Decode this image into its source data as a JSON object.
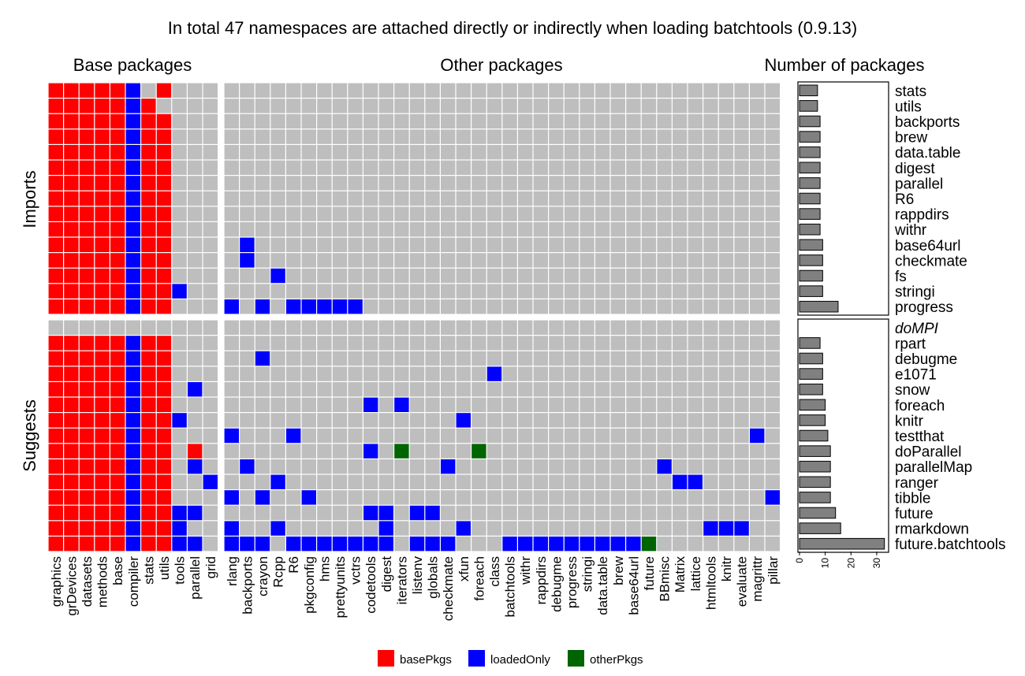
{
  "chart_data": {
    "type": "heatmap",
    "title": "In total 47 namespaces are attached directly or indirectly when loading batchtools (0.9.13)",
    "panel_titles": {
      "base": "Base packages",
      "other": "Other packages",
      "count": "Number of packages"
    },
    "group_labels": [
      "Imports",
      "Suggests"
    ],
    "base_columns": [
      "graphics",
      "grDevices",
      "datasets",
      "methods",
      "base",
      "compiler",
      "stats",
      "utils",
      "tools",
      "parallel",
      "grid"
    ],
    "other_columns": [
      "rlang",
      "backports",
      "crayon",
      "Rcpp",
      "R6",
      "pkgconfig",
      "hms",
      "prettyunits",
      "vctrs",
      "codetools",
      "digest",
      "iterators",
      "listenv",
      "globals",
      "checkmate",
      "xfun",
      "foreach",
      "class",
      "batchtools",
      "withr",
      "rappdirs",
      "debugme",
      "progress",
      "stringi",
      "data.table",
      "brew",
      "base64url",
      "future",
      "BBmisc",
      "Matrix",
      "lattice",
      "htmltools",
      "knitr",
      "evaluate",
      "magrittr",
      "pillar"
    ],
    "legend": [
      {
        "key": "basePkgs",
        "label": "basePkgs",
        "color": "#ff0000"
      },
      {
        "key": "loadedOnly",
        "label": "loadedOnly",
        "color": "#0000ff"
      },
      {
        "key": "otherPkgs",
        "label": "otherPkgs",
        "color": "#006400"
      }
    ],
    "empty_color": "#bebebe",
    "bar_color": "#808080",
    "count_axis": {
      "ticks": [
        0,
        10,
        20,
        30
      ],
      "range": [
        0,
        34
      ]
    },
    "rows": [
      {
        "group": "Imports",
        "name": "stats",
        "count": 7,
        "base": [
          "basePkgs",
          "basePkgs",
          "basePkgs",
          "basePkgs",
          "basePkgs",
          "loadedOnly",
          "",
          "basePkgs",
          "",
          "",
          ""
        ],
        "other": []
      },
      {
        "group": "Imports",
        "name": "utils",
        "count": 7,
        "base": [
          "basePkgs",
          "basePkgs",
          "basePkgs",
          "basePkgs",
          "basePkgs",
          "loadedOnly",
          "basePkgs",
          "",
          "",
          "",
          ""
        ],
        "other": []
      },
      {
        "group": "Imports",
        "name": "backports",
        "count": 8,
        "base": [
          "basePkgs",
          "basePkgs",
          "basePkgs",
          "basePkgs",
          "basePkgs",
          "loadedOnly",
          "basePkgs",
          "basePkgs",
          "",
          "",
          ""
        ],
        "other": []
      },
      {
        "group": "Imports",
        "name": "brew",
        "count": 8,
        "base": [
          "basePkgs",
          "basePkgs",
          "basePkgs",
          "basePkgs",
          "basePkgs",
          "loadedOnly",
          "basePkgs",
          "basePkgs",
          "",
          "",
          ""
        ],
        "other": []
      },
      {
        "group": "Imports",
        "name": "data.table",
        "count": 8,
        "base": [
          "basePkgs",
          "basePkgs",
          "basePkgs",
          "basePkgs",
          "basePkgs",
          "loadedOnly",
          "basePkgs",
          "basePkgs",
          "",
          "",
          ""
        ],
        "other": []
      },
      {
        "group": "Imports",
        "name": "digest",
        "count": 8,
        "base": [
          "basePkgs",
          "basePkgs",
          "basePkgs",
          "basePkgs",
          "basePkgs",
          "loadedOnly",
          "basePkgs",
          "basePkgs",
          "",
          "",
          ""
        ],
        "other": []
      },
      {
        "group": "Imports",
        "name": "parallel",
        "count": 8,
        "base": [
          "basePkgs",
          "basePkgs",
          "basePkgs",
          "basePkgs",
          "basePkgs",
          "loadedOnly",
          "basePkgs",
          "basePkgs",
          "",
          "",
          ""
        ],
        "other": []
      },
      {
        "group": "Imports",
        "name": "R6",
        "count": 8,
        "base": [
          "basePkgs",
          "basePkgs",
          "basePkgs",
          "basePkgs",
          "basePkgs",
          "loadedOnly",
          "basePkgs",
          "basePkgs",
          "",
          "",
          ""
        ],
        "other": []
      },
      {
        "group": "Imports",
        "name": "rappdirs",
        "count": 8,
        "base": [
          "basePkgs",
          "basePkgs",
          "basePkgs",
          "basePkgs",
          "basePkgs",
          "loadedOnly",
          "basePkgs",
          "basePkgs",
          "",
          "",
          ""
        ],
        "other": []
      },
      {
        "group": "Imports",
        "name": "withr",
        "count": 8,
        "base": [
          "basePkgs",
          "basePkgs",
          "basePkgs",
          "basePkgs",
          "basePkgs",
          "loadedOnly",
          "basePkgs",
          "basePkgs",
          "",
          "",
          ""
        ],
        "other": []
      },
      {
        "group": "Imports",
        "name": "base64url",
        "count": 9,
        "base": [
          "basePkgs",
          "basePkgs",
          "basePkgs",
          "basePkgs",
          "basePkgs",
          "loadedOnly",
          "basePkgs",
          "basePkgs",
          "",
          "",
          ""
        ],
        "other": [
          "backports"
        ]
      },
      {
        "group": "Imports",
        "name": "checkmate",
        "count": 9,
        "base": [
          "basePkgs",
          "basePkgs",
          "basePkgs",
          "basePkgs",
          "basePkgs",
          "loadedOnly",
          "basePkgs",
          "basePkgs",
          "",
          "",
          ""
        ],
        "other": [
          "backports"
        ]
      },
      {
        "group": "Imports",
        "name": "fs",
        "count": 9,
        "base": [
          "basePkgs",
          "basePkgs",
          "basePkgs",
          "basePkgs",
          "basePkgs",
          "loadedOnly",
          "basePkgs",
          "basePkgs",
          "",
          "",
          ""
        ],
        "other": [
          "Rcpp"
        ]
      },
      {
        "group": "Imports",
        "name": "stringi",
        "count": 9,
        "base": [
          "basePkgs",
          "basePkgs",
          "basePkgs",
          "basePkgs",
          "basePkgs",
          "loadedOnly",
          "basePkgs",
          "basePkgs",
          "loadedOnly",
          "",
          ""
        ],
        "other": []
      },
      {
        "group": "Imports",
        "name": "progress",
        "count": 15,
        "base": [
          "basePkgs",
          "basePkgs",
          "basePkgs",
          "basePkgs",
          "basePkgs",
          "loadedOnly",
          "basePkgs",
          "basePkgs",
          "",
          "",
          ""
        ],
        "other": [
          "rlang",
          "crayon",
          "R6",
          "pkgconfig",
          "hms",
          "prettyunits",
          "vctrs"
        ]
      },
      {
        "group": "Suggests",
        "name": "doMPI",
        "count": null,
        "unavailable": true,
        "base": [
          "",
          "",
          "",
          "",
          "",
          "",
          "",
          "",
          "",
          "",
          ""
        ],
        "other": []
      },
      {
        "group": "Suggests",
        "name": "rpart",
        "count": 8,
        "base": [
          "basePkgs",
          "basePkgs",
          "basePkgs",
          "basePkgs",
          "basePkgs",
          "loadedOnly",
          "basePkgs",
          "basePkgs",
          "",
          "",
          ""
        ],
        "other": []
      },
      {
        "group": "Suggests",
        "name": "debugme",
        "count": 9,
        "base": [
          "basePkgs",
          "basePkgs",
          "basePkgs",
          "basePkgs",
          "basePkgs",
          "loadedOnly",
          "basePkgs",
          "basePkgs",
          "",
          "",
          ""
        ],
        "other": [
          "crayon"
        ]
      },
      {
        "group": "Suggests",
        "name": "e1071",
        "count": 9,
        "base": [
          "basePkgs",
          "basePkgs",
          "basePkgs",
          "basePkgs",
          "basePkgs",
          "loadedOnly",
          "basePkgs",
          "basePkgs",
          "",
          "",
          ""
        ],
        "other": [
          "class"
        ]
      },
      {
        "group": "Suggests",
        "name": "snow",
        "count": 9,
        "base": [
          "basePkgs",
          "basePkgs",
          "basePkgs",
          "basePkgs",
          "basePkgs",
          "loadedOnly",
          "basePkgs",
          "basePkgs",
          "",
          "loadedOnly",
          ""
        ],
        "other": []
      },
      {
        "group": "Suggests",
        "name": "foreach",
        "count": 10,
        "base": [
          "basePkgs",
          "basePkgs",
          "basePkgs",
          "basePkgs",
          "basePkgs",
          "loadedOnly",
          "basePkgs",
          "basePkgs",
          "",
          "",
          ""
        ],
        "other": [
          "codetools",
          "iterators"
        ]
      },
      {
        "group": "Suggests",
        "name": "knitr",
        "count": 10,
        "base": [
          "basePkgs",
          "basePkgs",
          "basePkgs",
          "basePkgs",
          "basePkgs",
          "loadedOnly",
          "basePkgs",
          "basePkgs",
          "loadedOnly",
          "",
          ""
        ],
        "other": [
          "xfun"
        ]
      },
      {
        "group": "Suggests",
        "name": "testthat",
        "count": 11,
        "base": [
          "basePkgs",
          "basePkgs",
          "basePkgs",
          "basePkgs",
          "basePkgs",
          "loadedOnly",
          "basePkgs",
          "basePkgs",
          "",
          "",
          ""
        ],
        "other": [
          "rlang",
          "R6",
          "magrittr"
        ]
      },
      {
        "group": "Suggests",
        "name": "doParallel",
        "count": 12,
        "base": [
          "basePkgs",
          "basePkgs",
          "basePkgs",
          "basePkgs",
          "basePkgs",
          "loadedOnly",
          "basePkgs",
          "basePkgs",
          "",
          "basePkgs",
          ""
        ],
        "other": [
          "codetools",
          "iterators:otherPkgs",
          "foreach:otherPkgs"
        ]
      },
      {
        "group": "Suggests",
        "name": "parallelMap",
        "count": 12,
        "base": [
          "basePkgs",
          "basePkgs",
          "basePkgs",
          "basePkgs",
          "basePkgs",
          "loadedOnly",
          "basePkgs",
          "basePkgs",
          "",
          "loadedOnly",
          ""
        ],
        "other": [
          "backports",
          "checkmate",
          "BBmisc"
        ]
      },
      {
        "group": "Suggests",
        "name": "ranger",
        "count": 12,
        "base": [
          "basePkgs",
          "basePkgs",
          "basePkgs",
          "basePkgs",
          "basePkgs",
          "loadedOnly",
          "basePkgs",
          "basePkgs",
          "",
          "",
          "loadedOnly"
        ],
        "other": [
          "Rcpp",
          "Matrix",
          "lattice"
        ]
      },
      {
        "group": "Suggests",
        "name": "tibble",
        "count": 12,
        "base": [
          "basePkgs",
          "basePkgs",
          "basePkgs",
          "basePkgs",
          "basePkgs",
          "loadedOnly",
          "basePkgs",
          "basePkgs",
          "",
          "",
          ""
        ],
        "other": [
          "rlang",
          "crayon",
          "pkgconfig",
          "pillar"
        ]
      },
      {
        "group": "Suggests",
        "name": "future",
        "count": 14,
        "base": [
          "basePkgs",
          "basePkgs",
          "basePkgs",
          "basePkgs",
          "basePkgs",
          "loadedOnly",
          "basePkgs",
          "basePkgs",
          "loadedOnly",
          "loadedOnly",
          ""
        ],
        "other": [
          "codetools",
          "digest",
          "listenv",
          "globals"
        ]
      },
      {
        "group": "Suggests",
        "name": "rmarkdown",
        "count": 16,
        "base": [
          "basePkgs",
          "basePkgs",
          "basePkgs",
          "basePkgs",
          "basePkgs",
          "loadedOnly",
          "basePkgs",
          "basePkgs",
          "loadedOnly",
          "",
          ""
        ],
        "other": [
          "rlang",
          "Rcpp",
          "digest",
          "xfun",
          "htmltools",
          "knitr",
          "evaluate"
        ]
      },
      {
        "group": "Suggests",
        "name": "future.batchtools",
        "count": 33,
        "base": [
          "basePkgs",
          "basePkgs",
          "basePkgs",
          "basePkgs",
          "basePkgs",
          "loadedOnly",
          "basePkgs",
          "basePkgs",
          "loadedOnly",
          "loadedOnly",
          ""
        ],
        "other": [
          "rlang",
          "backports",
          "crayon",
          "R6",
          "pkgconfig",
          "hms",
          "prettyunits",
          "vctrs",
          "codetools",
          "digest",
          "listenv",
          "globals",
          "checkmate",
          "batchtools",
          "withr",
          "rappdirs",
          "debugme",
          "progress",
          "stringi",
          "data.table",
          "brew",
          "base64url",
          "future:otherPkgs"
        ]
      }
    ]
  }
}
